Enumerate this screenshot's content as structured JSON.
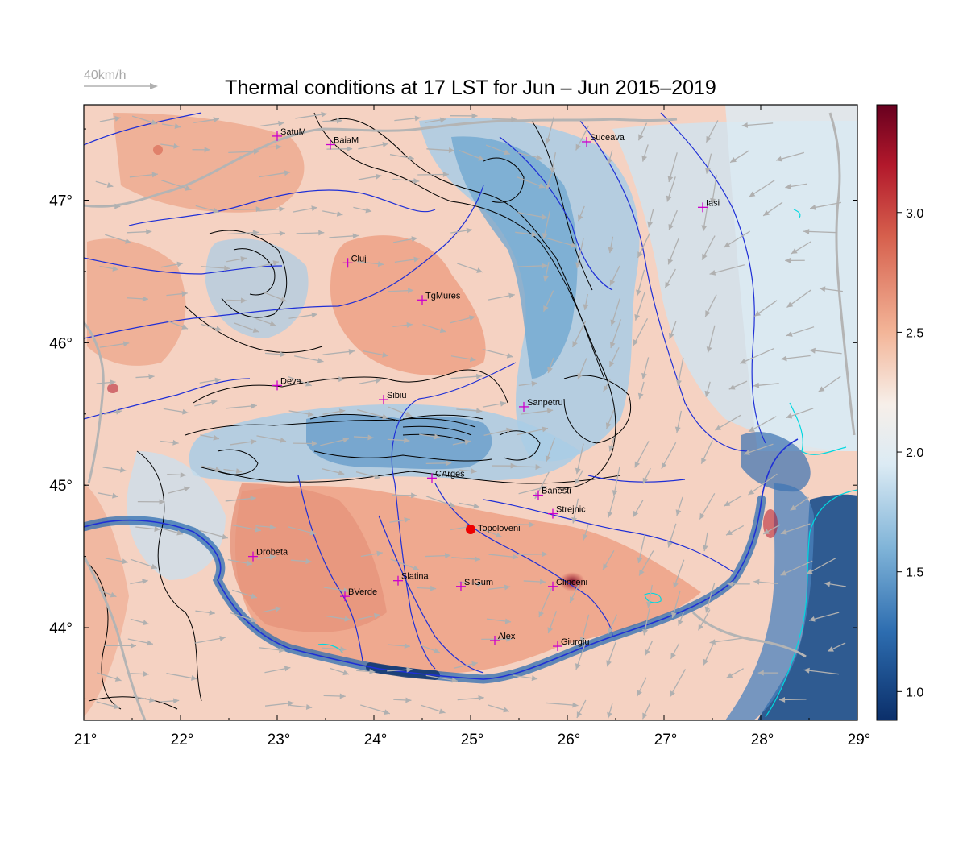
{
  "title": "Thermal conditions at 17 LST for Jun – Jun  2015–2019",
  "wind_reference": {
    "label": "40km/h",
    "color": "#b0b0b0"
  },
  "map": {
    "lon_range": [
      21,
      29
    ],
    "lat_range": [
      43.35,
      47.67
    ],
    "lon_ticks": [
      "21°",
      "22°",
      "23°",
      "24°",
      "25°",
      "26°",
      "27°",
      "28°",
      "29°"
    ],
    "lat_ticks": [
      {
        "lat": 44,
        "label": "44°"
      },
      {
        "lat": 45,
        "label": "45°"
      },
      {
        "lat": 46,
        "label": "46°"
      },
      {
        "lat": 47,
        "label": "47°"
      }
    ],
    "colors": {
      "river": "#1f2fd6",
      "border": "#b4b4b4",
      "contour": "#000000",
      "marker": "#cc00cc",
      "highlight": "#ee0000",
      "lake": "#00d8e0"
    }
  },
  "colorbar": {
    "range": [
      0.88,
      3.45
    ],
    "ticks": [
      "1.0",
      "1.5",
      "2.0",
      "2.5",
      "3.0"
    ],
    "tick_values": [
      1.0,
      1.5,
      2.0,
      2.5,
      3.0
    ],
    "stops": [
      {
        "v": 0.88,
        "c": "#0b2f6a"
      },
      {
        "v": 1.25,
        "c": "#2d6db0"
      },
      {
        "v": 1.6,
        "c": "#80b4d8"
      },
      {
        "v": 1.95,
        "c": "#dcebf4"
      },
      {
        "v": 2.2,
        "c": "#f7efe9"
      },
      {
        "v": 2.5,
        "c": "#f3b598"
      },
      {
        "v": 2.9,
        "c": "#d6604d"
      },
      {
        "v": 3.2,
        "c": "#b2182b"
      },
      {
        "v": 3.45,
        "c": "#67001f"
      }
    ]
  },
  "cities": [
    {
      "name": "SatuM",
      "lon": 23.0,
      "lat": 47.45
    },
    {
      "name": "BaiaM",
      "lon": 23.55,
      "lat": 47.39
    },
    {
      "name": "Suceava",
      "lon": 26.2,
      "lat": 47.41
    },
    {
      "name": "Iasi",
      "lon": 27.4,
      "lat": 46.95
    },
    {
      "name": "Cluj",
      "lon": 23.73,
      "lat": 46.56
    },
    {
      "name": "TgMures",
      "lon": 24.5,
      "lat": 46.3
    },
    {
      "name": "Deva",
      "lon": 23.0,
      "lat": 45.7
    },
    {
      "name": "Sibiu",
      "lon": 24.1,
      "lat": 45.6
    },
    {
      "name": "Sanpetru",
      "lon": 25.55,
      "lat": 45.55
    },
    {
      "name": "CArges",
      "lon": 24.6,
      "lat": 45.05
    },
    {
      "name": "Banesti",
      "lon": 25.7,
      "lat": 44.93
    },
    {
      "name": "Strejnic",
      "lon": 25.85,
      "lat": 44.8
    },
    {
      "name": "Drobeta",
      "lon": 22.75,
      "lat": 44.5
    },
    {
      "name": "Slatina",
      "lon": 24.25,
      "lat": 44.33
    },
    {
      "name": "SilGum",
      "lon": 24.9,
      "lat": 44.29
    },
    {
      "name": "Clinceni",
      "lon": 25.85,
      "lat": 44.29
    },
    {
      "name": "BVerde",
      "lon": 23.7,
      "lat": 44.22
    },
    {
      "name": "Alex",
      "lon": 25.25,
      "lat": 43.91
    },
    {
      "name": "Giurgiu",
      "lon": 25.9,
      "lat": 43.87
    }
  ],
  "highlight_site": {
    "name": "Topoloveni",
    "lon": 25.0,
    "lat": 44.69
  }
}
